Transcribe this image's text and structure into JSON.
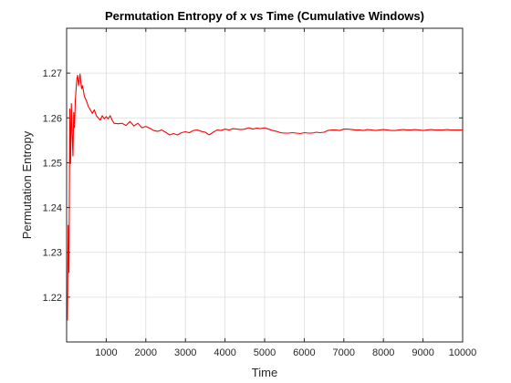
{
  "chart_data": {
    "type": "line",
    "title": "Permutation Entropy of x vs Time (Cumulative Windows)",
    "xlabel": "Time",
    "ylabel": "Permutation Entropy",
    "xlim": [
      0,
      10000
    ],
    "ylim": [
      1.21,
      1.28
    ],
    "xticks": [
      1000,
      2000,
      3000,
      4000,
      5000,
      6000,
      7000,
      8000,
      9000,
      10000
    ],
    "xtick_labels": [
      "1000",
      "2000",
      "3000",
      "4000",
      "5000",
      "6000",
      "7000",
      "8000",
      "9000",
      "10000"
    ],
    "yticks": [
      1.22,
      1.23,
      1.24,
      1.25,
      1.26,
      1.27
    ],
    "ytick_labels": [
      "1.22",
      "1.23",
      "1.24",
      "1.25",
      "1.26",
      "1.27"
    ],
    "grid": true,
    "series": [
      {
        "color": "#ff0000",
        "x": [
          20,
          40,
          60,
          80,
          100,
          120,
          140,
          160,
          180,
          200,
          220,
          240,
          260,
          280,
          300,
          320,
          340,
          360,
          380,
          400,
          450,
          500,
          550,
          600,
          650,
          700,
          750,
          800,
          850,
          900,
          950,
          1000,
          1050,
          1100,
          1150,
          1200,
          1300,
          1400,
          1500,
          1600,
          1700,
          1800,
          1900,
          2000,
          2100,
          2200,
          2300,
          2400,
          2500,
          2600,
          2700,
          2800,
          2900,
          3000,
          3100,
          3200,
          3300,
          3400,
          3500,
          3600,
          3700,
          3800,
          3900,
          4000,
          4100,
          4200,
          4300,
          4400,
          4500,
          4600,
          4700,
          4800,
          4900,
          5000,
          5100,
          5200,
          5300,
          5400,
          5500,
          5600,
          5700,
          5800,
          5900,
          6000,
          6100,
          6200,
          6300,
          6400,
          6500,
          6600,
          6700,
          6800,
          6900,
          7000,
          7100,
          7200,
          7300,
          7400,
          7500,
          7600,
          7700,
          7800,
          7900,
          8000,
          8100,
          8200,
          8300,
          8400,
          8500,
          8600,
          8700,
          8800,
          8900,
          9000,
          9100,
          9200,
          9300,
          9400,
          9500,
          9600,
          9700,
          9800,
          9900,
          10000
        ],
        "y": [
          1.2148,
          1.236,
          1.2255,
          1.262,
          1.2498,
          1.2632,
          1.2565,
          1.2515,
          1.2612,
          1.2578,
          1.264,
          1.2665,
          1.2688,
          1.2695,
          1.2672,
          1.2685,
          1.2698,
          1.2678,
          1.2665,
          1.2672,
          1.2648,
          1.2638,
          1.2625,
          1.2618,
          1.261,
          1.2618,
          1.2605,
          1.26,
          1.2595,
          1.2605,
          1.2598,
          1.2603,
          1.2598,
          1.2605,
          1.2595,
          1.2588,
          1.2587,
          1.2588,
          1.2583,
          1.2592,
          1.2582,
          1.2588,
          1.2578,
          1.2581,
          1.2577,
          1.2572,
          1.257,
          1.2573,
          1.2568,
          1.2562,
          1.2565,
          1.2562,
          1.2567,
          1.2569,
          1.2567,
          1.2572,
          1.2573,
          1.257,
          1.2568,
          1.2562,
          1.2568,
          1.2573,
          1.2572,
          1.2575,
          1.2573,
          1.2576,
          1.2575,
          1.2574,
          1.2575,
          1.2578,
          1.2575,
          1.2577,
          1.2576,
          1.2578,
          1.2575,
          1.2572,
          1.257,
          1.2567,
          1.2566,
          1.2566,
          1.2567,
          1.2566,
          1.2565,
          1.2567,
          1.2566,
          1.2566,
          1.2568,
          1.2567,
          1.2568,
          1.2572,
          1.2573,
          1.2573,
          1.2572,
          1.2575,
          1.2575,
          1.2574,
          1.2573,
          1.2573,
          1.2572,
          1.2574,
          1.2573,
          1.2572,
          1.2573,
          1.2574,
          1.2573,
          1.2572,
          1.2572,
          1.2573,
          1.2574,
          1.2573,
          1.2573,
          1.2574,
          1.2573,
          1.2572,
          1.2573,
          1.2574,
          1.2573,
          1.2573,
          1.2573,
          1.2574,
          1.2573,
          1.2573,
          1.2573,
          1.2573
        ]
      }
    ]
  }
}
